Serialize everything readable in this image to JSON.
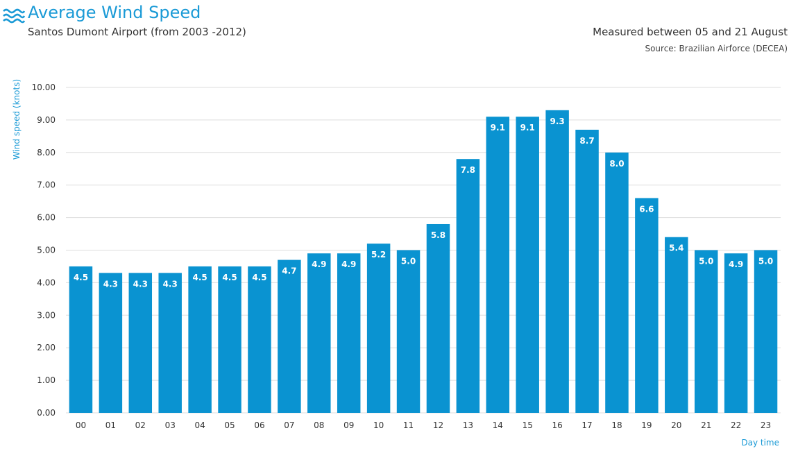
{
  "header": {
    "title": "Average Wind Speed",
    "subtitle": "Santos Dumont Airport (from 2003 -2012)",
    "measured": "Measured between 05 and 21 August",
    "source": "Source: Brazilian Airforce (DECEA)"
  },
  "colors": {
    "accent": "#1a9ad6",
    "bar": "#0a93d1",
    "grid": "#dddddd"
  },
  "chart_data": {
    "type": "bar",
    "title": "Average Wind Speed",
    "xlabel": "Day time",
    "ylabel": "Wind speed (knots)",
    "ylim": [
      0,
      10
    ],
    "grid": true,
    "yticks": [
      "0.00",
      "1.00",
      "2.00",
      "3.00",
      "4.00",
      "5.00",
      "6.00",
      "7.00",
      "8.00",
      "9.00",
      "10.00"
    ],
    "categories": [
      "00",
      "01",
      "02",
      "03",
      "04",
      "05",
      "06",
      "07",
      "08",
      "09",
      "10",
      "11",
      "12",
      "13",
      "14",
      "15",
      "16",
      "17",
      "18",
      "19",
      "20",
      "21",
      "22",
      "23"
    ],
    "values": [
      4.5,
      4.3,
      4.3,
      4.3,
      4.5,
      4.5,
      4.5,
      4.7,
      4.9,
      4.9,
      5.2,
      5.0,
      5.8,
      7.8,
      9.1,
      9.1,
      9.3,
      8.7,
      8.0,
      6.6,
      5.4,
      5.0,
      4.9,
      5.0
    ],
    "labels": [
      "4.5",
      "4.3",
      "4.3",
      "4.3",
      "4.5",
      "4.5",
      "4.5",
      "4.7",
      "4.9",
      "4.9",
      "5.2",
      "5.0",
      "5.8",
      "7.8",
      "9.1",
      "9.1",
      "9.3",
      "8.7",
      "8.0",
      "6.6",
      "5.4",
      "5.0",
      "4.9",
      "5.0"
    ]
  }
}
